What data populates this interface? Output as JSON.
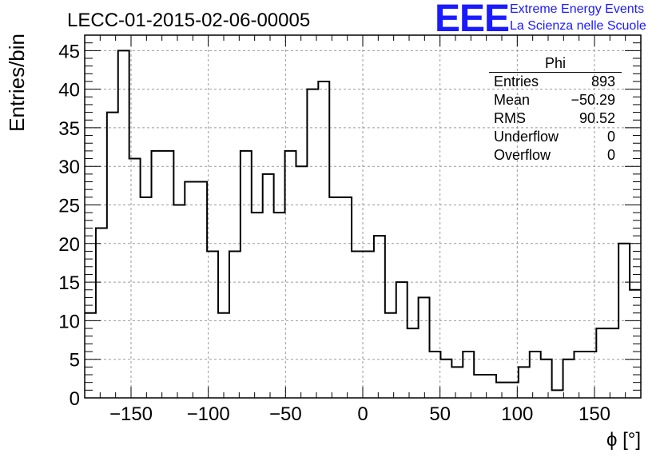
{
  "header": {
    "title": "LECC-01-2015-02-06-00005",
    "logo_text": "EEE",
    "brand_line1": "Extreme Energy Events",
    "brand_line2": "La Scienza nelle Scuole",
    "brand_color": "#1a1aff"
  },
  "stats_box": {
    "name": "Phi",
    "rows": [
      {
        "label": "Entries",
        "value": "893"
      },
      {
        "label": "Mean",
        "value": "−50.29"
      },
      {
        "label": "RMS",
        "value": "90.52"
      },
      {
        "label": "Underflow",
        "value": "0"
      },
      {
        "label": "Overflow",
        "value": "0"
      }
    ]
  },
  "chart_data": {
    "type": "histogram",
    "title": "LECC-01-2015-02-06-00005",
    "xlabel": "ϕ [°]",
    "ylabel": "Entries/bin",
    "xlim": [
      -180,
      180
    ],
    "ylim": [
      0,
      47
    ],
    "bin_width": 7.2,
    "values": [
      11,
      22,
      37,
      45,
      31,
      26,
      32,
      32,
      25,
      28,
      28,
      19,
      11,
      19,
      32,
      24,
      29,
      24,
      32,
      30,
      40,
      41,
      26,
      26,
      19,
      19,
      21,
      11,
      15,
      9,
      13,
      6,
      5,
      4,
      6,
      3,
      3,
      2,
      2,
      4,
      6,
      5,
      1,
      5,
      6,
      6,
      9,
      9,
      20,
      14
    ],
    "xticks": [
      -150,
      -100,
      -50,
      0,
      50,
      100,
      150
    ],
    "xtick_labels": [
      "−150",
      "−100",
      "−50",
      "0",
      "50",
      "100",
      "150"
    ],
    "yticks": [
      0,
      5,
      10,
      15,
      20,
      25,
      30,
      35,
      40,
      45
    ],
    "yticks_labels": [
      "0",
      "5",
      "10",
      "15",
      "20",
      "25",
      "30",
      "35",
      "40",
      "45"
    ],
    "grid": true
  }
}
